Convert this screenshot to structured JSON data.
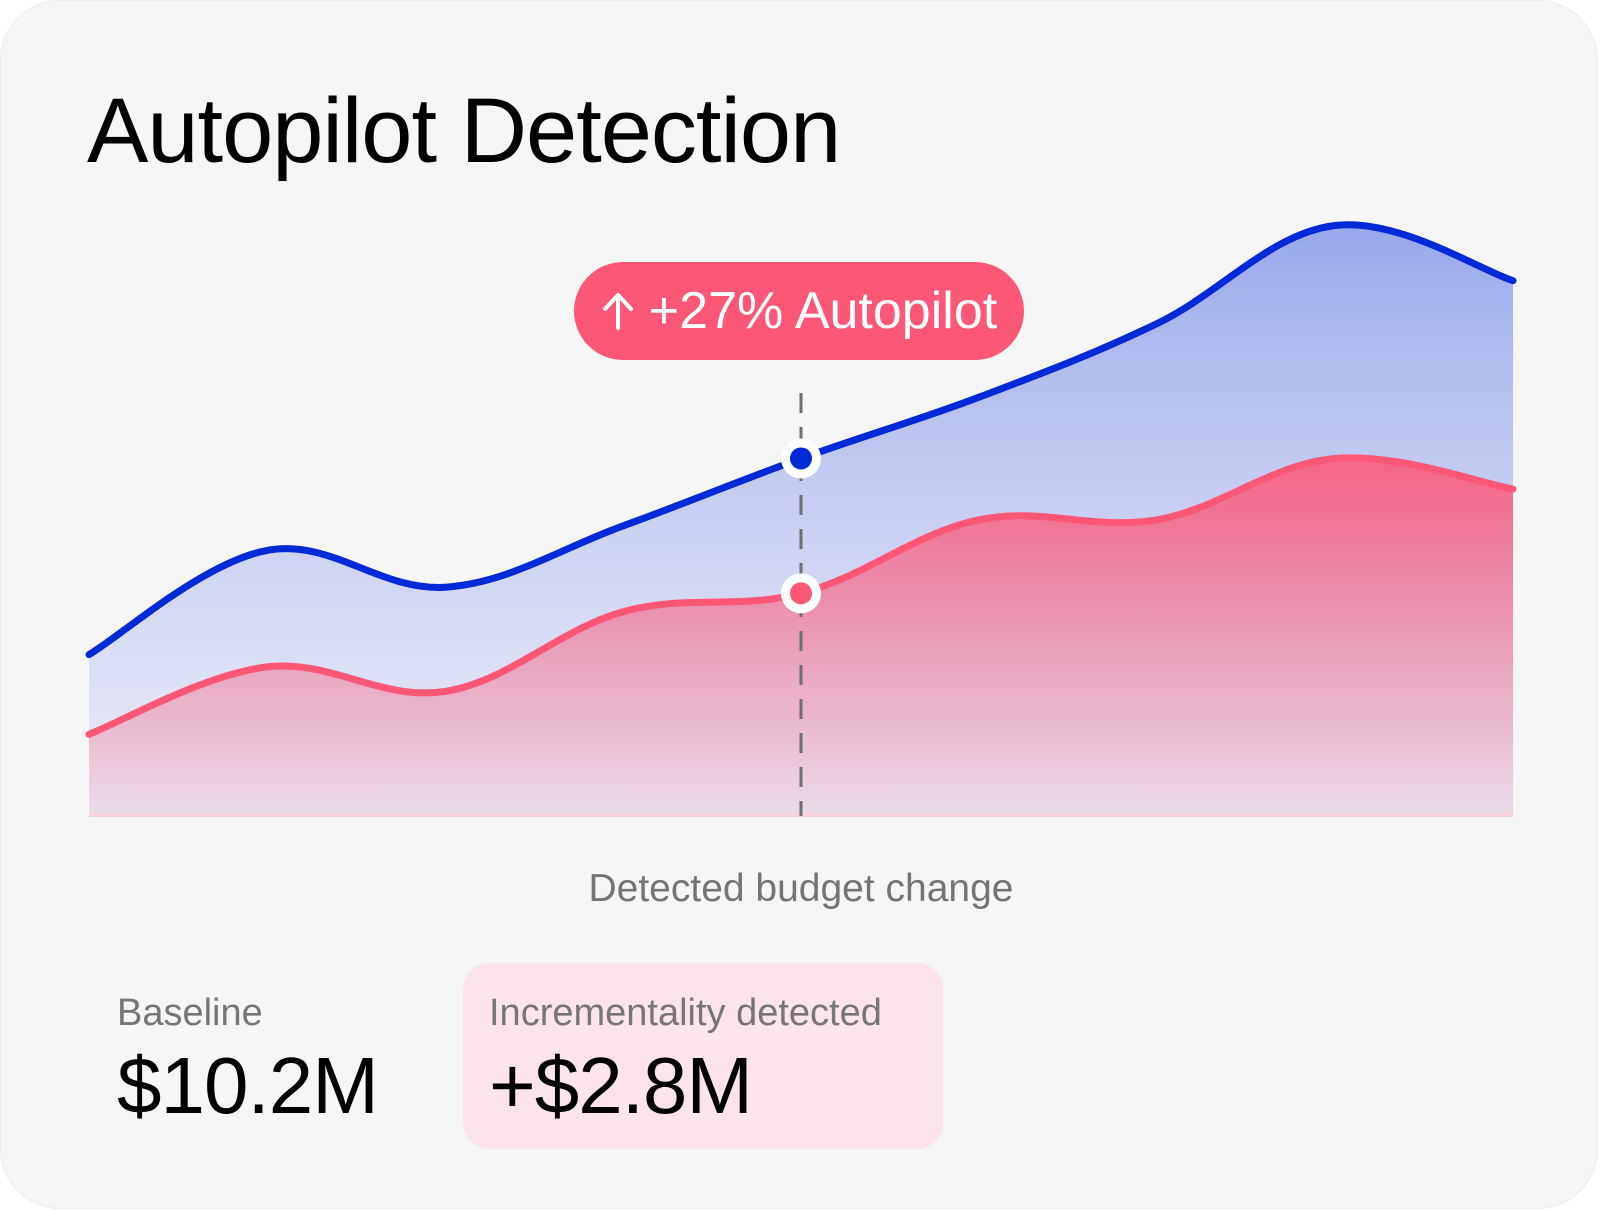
{
  "title": "Autopilot Detection",
  "callout": {
    "arrow_icon": "arrow-up-icon",
    "text": "+27% Autopilot"
  },
  "xlabel": "Detected budget change",
  "stats": {
    "baseline": {
      "label": "Baseline",
      "value": "$10.2M"
    },
    "incrementality": {
      "label": "Incrementality detected",
      "value": "+$2.8M"
    }
  },
  "colors": {
    "autopilot": "#0029d8",
    "baseline": "#fd5778",
    "card_bg": "#f6f6f6",
    "highlight_bg": "#fbe5ea"
  },
  "chart_data": {
    "type": "area",
    "title": "Autopilot Detection",
    "xlabel": "Detected budget change",
    "ylabel": "",
    "x": [
      0,
      2,
      4,
      6,
      8,
      10,
      12,
      14,
      16
    ],
    "xlim": [
      0,
      16
    ],
    "ylim": [
      0,
      100
    ],
    "grid": false,
    "marker_x": 8,
    "marker_label": "Detected budget change",
    "series": [
      {
        "name": "Autopilot",
        "color": "#0029d8",
        "values": [
          26,
          43,
          37,
          47,
          58,
          68,
          80,
          96,
          87
        ]
      },
      {
        "name": "Baseline",
        "color": "#fd5778",
        "values": [
          13,
          24,
          20,
          33,
          36,
          48,
          48,
          58,
          53
        ]
      }
    ]
  }
}
